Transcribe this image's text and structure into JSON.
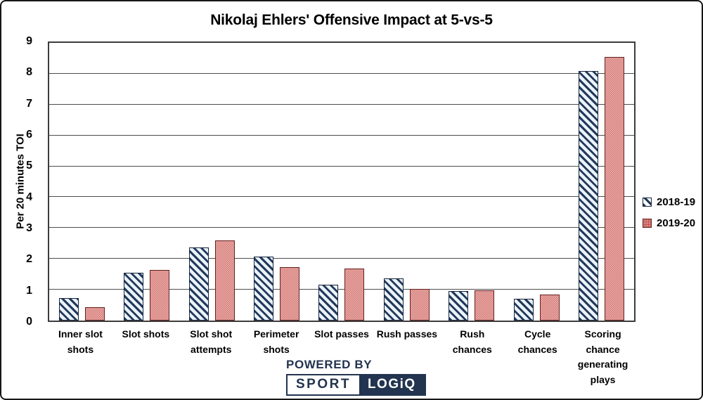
{
  "title": "Nikolaj Ehlers' Offensive Impact at 5-vs-5",
  "chart_data": {
    "type": "bar",
    "title": "Nikolaj Ehlers' Offensive Impact at 5-vs-5",
    "categories": [
      "Inner slot shots",
      "Slot shots",
      "Slot shot attempts",
      "Perimeter shots",
      "Slot passes",
      "Rush passes",
      "Rush chances",
      "Cycle chances",
      "Scoring chance generating plays"
    ],
    "series": [
      {
        "name": "2018-19",
        "pattern": "navy-diagonal-stripes-on-pale-blue",
        "values": [
          0.73,
          1.56,
          2.36,
          2.07,
          1.17,
          1.37,
          0.96,
          0.71,
          8.08
        ]
      },
      {
        "name": "2019-20",
        "pattern": "light-dots-on-red",
        "values": [
          0.44,
          1.63,
          2.6,
          1.73,
          1.68,
          1.03,
          0.98,
          0.84,
          8.55
        ]
      }
    ],
    "xlabel": "",
    "ylabel": "Per 20 minutes TOI",
    "ylim": [
      0,
      9
    ],
    "yticks": [
      0,
      1,
      2,
      3,
      4,
      5,
      6,
      7,
      8,
      9
    ],
    "grid": "horizontal",
    "legend_position": "right"
  },
  "colors": {
    "stripe_navy": "#21395b",
    "stripe_background": "#ebf2f9",
    "red_base": "#b94845",
    "red_dot": "#f2bdb9",
    "grid_line": "#4d4d4d",
    "axis_frame": "#3c3c3c",
    "brand_navy": "#22344f"
  },
  "branding": {
    "powered_by": "POWERED BY",
    "logo_left": "SPORT",
    "logo_right": "LOGiQ"
  }
}
